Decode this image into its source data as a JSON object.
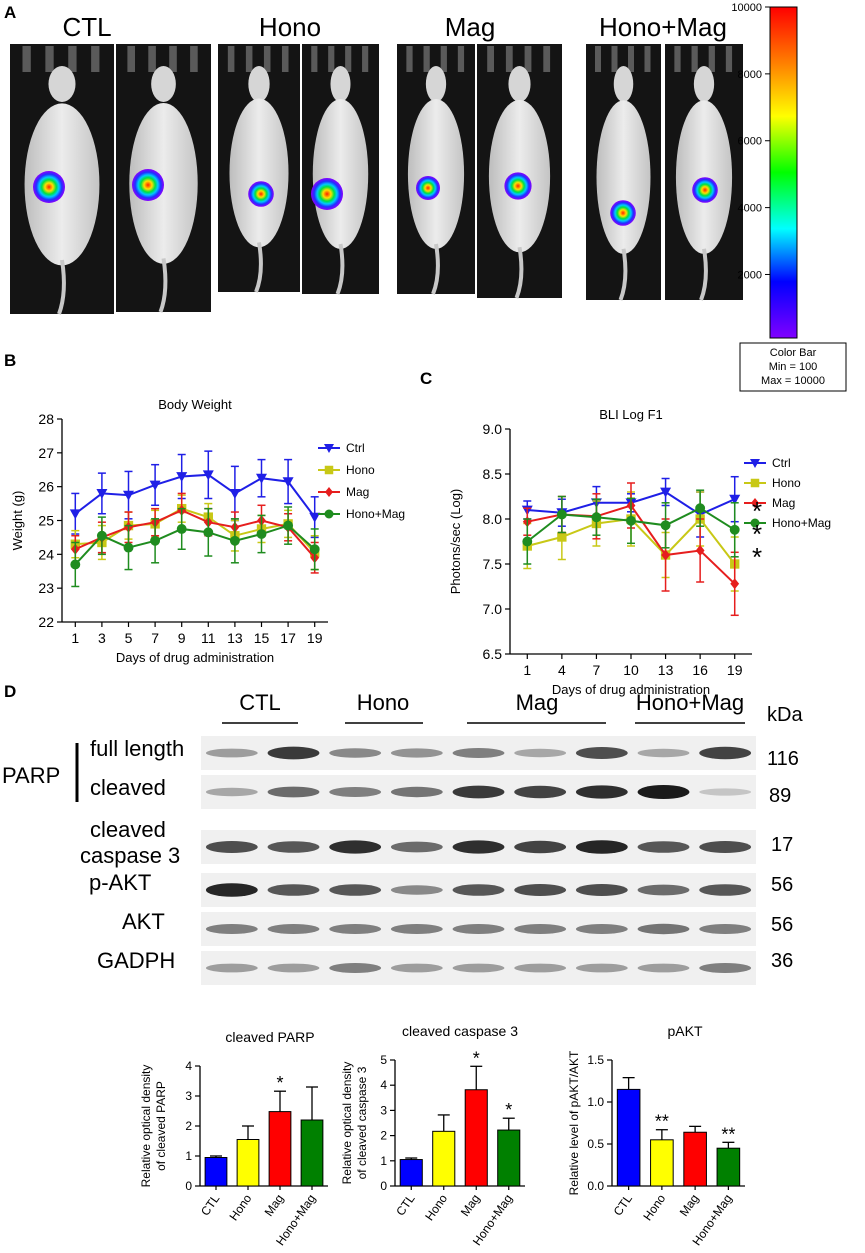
{
  "panel_a": {
    "letter": "A",
    "groups": [
      {
        "label": "CTL",
        "spots": [
          {
            "fill": 1.0
          },
          {
            "fill": 1.0
          }
        ]
      },
      {
        "label": "Hono",
        "spots": [
          {
            "fill": 0.8
          },
          {
            "fill": 1.0
          }
        ]
      },
      {
        "label": "Mag",
        "spots": [
          {
            "fill": 0.75
          },
          {
            "fill": 0.85
          }
        ]
      },
      {
        "label": "Hono+Mag",
        "spots": [
          {
            "fill": 0.8
          },
          {
            "fill": 0.8
          }
        ]
      }
    ],
    "colorbar": {
      "min": 100,
      "max": 10000,
      "ticks": [
        "10000",
        "8000",
        "6000",
        "4000",
        "2000"
      ],
      "caption_title": "Color Bar",
      "caption_min": "Min = 100",
      "caption_max": "Max = 10000"
    }
  },
  "panel_b": {
    "letter": "B"
  },
  "panel_c": {
    "letter": "C"
  },
  "panel_d": {
    "letter": "D",
    "group_headers": [
      "CTL",
      "Hono",
      "Mag",
      "Hono+Mag"
    ],
    "kda_label": "kDa",
    "parp_label": "PARP",
    "blots": [
      {
        "label": "full length",
        "kda": "116",
        "intensity": [
          0.35,
          0.85,
          0.45,
          0.4,
          0.5,
          0.3,
          0.75,
          0.3,
          0.8
        ]
      },
      {
        "label": "cleaved",
        "kda": "89",
        "intensity": [
          0.3,
          0.6,
          0.5,
          0.55,
          0.85,
          0.8,
          0.9,
          1.0,
          0.15
        ]
      },
      {
        "label": "cleaved\ncaspase 3",
        "kda": "17",
        "intensity": [
          0.75,
          0.7,
          0.9,
          0.6,
          0.9,
          0.8,
          0.95,
          0.7,
          0.75
        ]
      },
      {
        "label": "p-AKT",
        "kda": "56",
        "intensity": [
          0.95,
          0.7,
          0.7,
          0.45,
          0.7,
          0.75,
          0.75,
          0.6,
          0.7
        ]
      },
      {
        "label": "AKT",
        "kda": "56",
        "intensity": [
          0.5,
          0.5,
          0.5,
          0.5,
          0.5,
          0.5,
          0.5,
          0.55,
          0.5
        ]
      },
      {
        "label": "GADPH",
        "kda": "36",
        "intensity": [
          0.35,
          0.35,
          0.5,
          0.35,
          0.35,
          0.35,
          0.35,
          0.35,
          0.5
        ]
      }
    ]
  },
  "chart_data": [
    {
      "id": "body_weight",
      "type": "line",
      "title": "Body Weight",
      "xlabel": "Days of drug administration",
      "ylabel": "Weight (g)",
      "x": [
        1,
        3,
        5,
        7,
        9,
        11,
        13,
        15,
        17,
        19
      ],
      "xlim": [
        0,
        20
      ],
      "xticks": [
        1,
        3,
        5,
        7,
        9,
        11,
        13,
        15,
        17,
        19
      ],
      "ylim": [
        22,
        28
      ],
      "yticks": [
        22,
        23,
        24,
        25,
        26,
        27,
        28
      ],
      "legend": "right",
      "series": [
        {
          "name": "Ctrl",
          "color": "#1f1fe6",
          "marker": "triangle-down",
          "values": [
            25.2,
            25.8,
            25.75,
            26.05,
            26.3,
            26.35,
            25.8,
            26.25,
            26.15,
            25.1
          ],
          "errors": [
            0.6,
            0.6,
            0.7,
            0.6,
            0.65,
            0.7,
            0.8,
            0.55,
            0.65,
            0.6
          ]
        },
        {
          "name": "Hono",
          "color": "#c8c816",
          "marker": "square",
          "values": [
            24.3,
            24.35,
            24.85,
            24.9,
            25.35,
            25.1,
            24.55,
            24.75,
            24.9,
            24.05
          ],
          "errors": [
            0.4,
            0.5,
            0.4,
            0.4,
            0.4,
            0.4,
            0.45,
            0.4,
            0.4,
            0.5
          ]
        },
        {
          "name": "Mag",
          "color": "#e61e1e",
          "marker": "diamond",
          "values": [
            24.15,
            24.5,
            24.8,
            24.95,
            25.3,
            24.95,
            24.8,
            25.0,
            24.8,
            23.9
          ],
          "errors": [
            0.4,
            0.45,
            0.45,
            0.4,
            0.5,
            0.4,
            0.45,
            0.45,
            0.4,
            0.45
          ]
        },
        {
          "name": "Hono+Mag",
          "color": "#1f8c1f",
          "marker": "circle",
          "values": [
            23.7,
            24.55,
            24.2,
            24.4,
            24.75,
            24.65,
            24.4,
            24.6,
            24.85,
            24.15
          ],
          "errors": [
            0.65,
            0.55,
            0.65,
            0.65,
            0.6,
            0.7,
            0.65,
            0.55,
            0.55,
            0.6
          ]
        }
      ]
    },
    {
      "id": "bli",
      "type": "line",
      "title": "BLI Log F1",
      "xlabel": "Days of drug administration",
      "ylabel": "Photons/sec (Log)",
      "x": [
        1,
        4,
        7,
        10,
        13,
        16,
        19
      ],
      "xlim": [
        -0.5,
        20.5
      ],
      "xticks": [
        1,
        4,
        7,
        10,
        13,
        16,
        19
      ],
      "ylim": [
        6.5,
        9.0
      ],
      "yticks": [
        6.5,
        7.0,
        7.5,
        8.0,
        8.5,
        9.0
      ],
      "legend": "right",
      "annotations": [
        "*",
        "*",
        "*"
      ],
      "series": [
        {
          "name": "Ctrl",
          "color": "#1f1fe6",
          "marker": "triangle-down",
          "values": [
            8.1,
            8.07,
            8.18,
            8.18,
            8.3,
            8.05,
            8.22
          ],
          "errors": [
            0.1,
            0.15,
            0.18,
            0.1,
            0.15,
            0.25,
            0.25
          ]
        },
        {
          "name": "Hono",
          "color": "#c8c816",
          "marker": "square",
          "values": [
            7.7,
            7.8,
            7.95,
            8.0,
            7.6,
            8.0,
            7.5
          ],
          "errors": [
            0.25,
            0.25,
            0.25,
            0.3,
            0.25,
            0.3,
            0.3
          ]
        },
        {
          "name": "Mag",
          "color": "#e61e1e",
          "marker": "diamond",
          "values": [
            7.97,
            8.05,
            8.03,
            8.15,
            7.6,
            7.65,
            7.28
          ],
          "errors": [
            0.15,
            0.2,
            0.25,
            0.25,
            0.4,
            0.35,
            0.35
          ]
        },
        {
          "name": "Hono+Mag",
          "color": "#1f8c1f",
          "marker": "circle",
          "values": [
            7.75,
            8.05,
            8.02,
            7.98,
            7.93,
            8.12,
            7.88
          ],
          "errors": [
            0.25,
            0.2,
            0.2,
            0.25,
            0.25,
            0.2,
            0.3
          ]
        }
      ]
    },
    {
      "id": "cleaved_parp",
      "type": "bar",
      "title": "cleaved PARP",
      "ylabel": "Relative optical density\nof cleaved PARP",
      "categories": [
        "CTL",
        "Hono",
        "Mag",
        "Hono+Mag"
      ],
      "values": [
        0.95,
        1.55,
        2.48,
        2.2
      ],
      "errors": [
        0.05,
        0.45,
        0.68,
        1.1
      ],
      "significance": [
        "",
        "",
        "*",
        ""
      ],
      "colors": [
        "#0000ff",
        "#ffff00",
        "#ff0000",
        "#008000"
      ],
      "ylim": [
        0,
        4
      ],
      "yticks": [
        0,
        1,
        2,
        3,
        4
      ]
    },
    {
      "id": "cleaved_caspase3",
      "type": "bar",
      "title": "cleaved caspase 3",
      "ylabel": "Relative optical density\nof cleaved caspase 3",
      "categories": [
        "CTL",
        "Hono",
        "Mag",
        "Hono+Mag"
      ],
      "values": [
        1.05,
        2.17,
        3.82,
        2.22
      ],
      "errors": [
        0.06,
        0.65,
        0.93,
        0.47
      ],
      "significance": [
        "",
        "",
        "*",
        "*"
      ],
      "colors": [
        "#0000ff",
        "#ffff00",
        "#ff0000",
        "#008000"
      ],
      "ylim": [
        0,
        5
      ],
      "yticks": [
        0,
        1,
        2,
        3,
        4,
        5
      ]
    },
    {
      "id": "pakt",
      "type": "bar",
      "title": "pAKT",
      "ylabel": "Relative level of pAKT/AKT",
      "categories": [
        "CTL",
        "Hono",
        "Mag",
        "Hono+Mag"
      ],
      "values": [
        1.15,
        0.55,
        0.64,
        0.45
      ],
      "errors": [
        0.14,
        0.12,
        0.07,
        0.07
      ],
      "significance": [
        "",
        "**",
        "",
        "**"
      ],
      "colors": [
        "#0000ff",
        "#ffff00",
        "#ff0000",
        "#008000"
      ],
      "ylim": [
        0,
        1.5
      ],
      "yticks": [
        0.0,
        0.5,
        1.0,
        1.5
      ],
      "ytick_labels": [
        "0.0",
        "0.5",
        "1.0",
        "1.5"
      ]
    }
  ]
}
